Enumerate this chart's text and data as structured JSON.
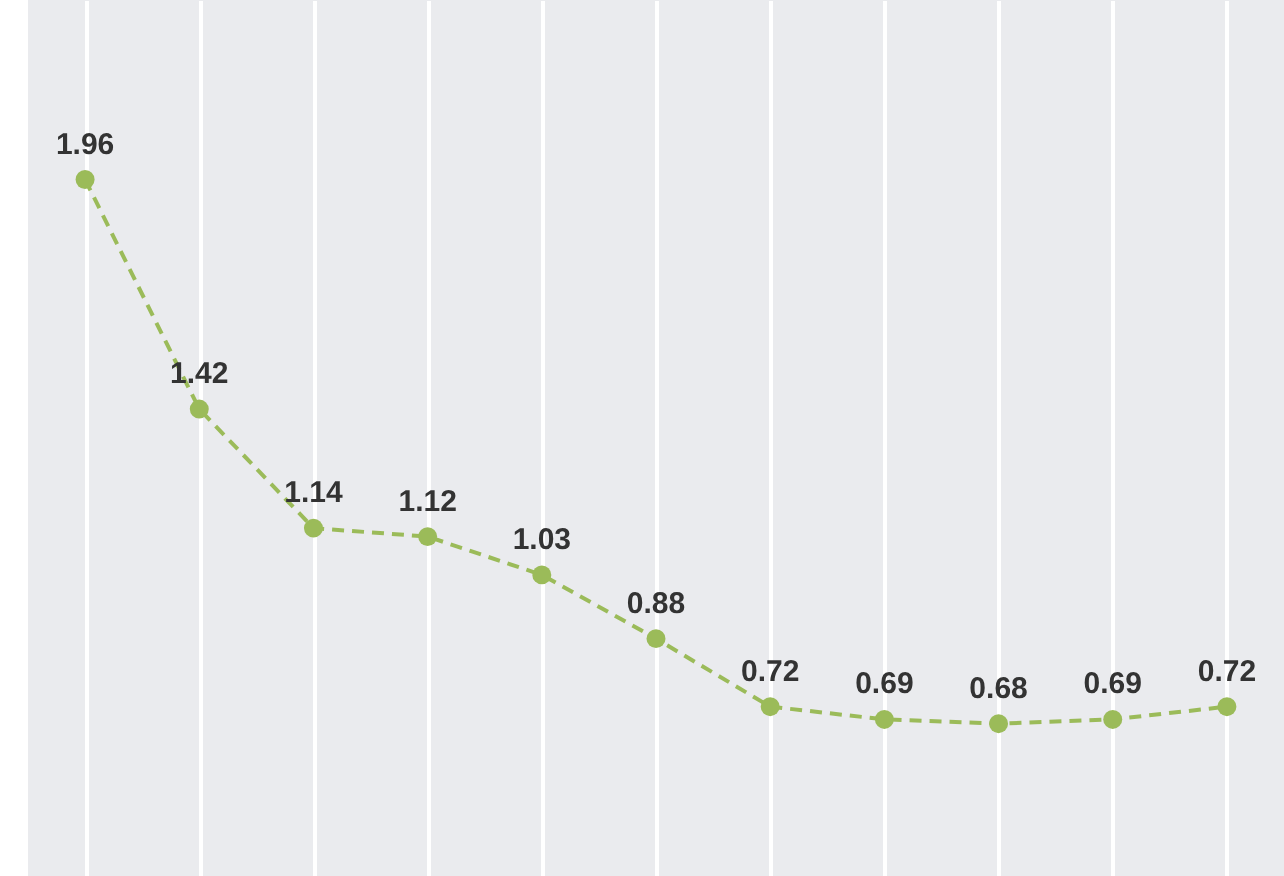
{
  "chart_data": {
    "type": "line",
    "categories": [
      null,
      null,
      null,
      null,
      null,
      null,
      null,
      null,
      null,
      null,
      null
    ],
    "series": [
      {
        "color": "#9bbb59",
        "values": [
          1.96,
          1.42,
          1.14,
          1.12,
          1.03,
          0.88,
          0.72,
          0.69,
          0.68,
          0.69,
          0.72
        ]
      }
    ],
    "data_labels": true,
    "marker": "circle",
    "line_style": "dashed",
    "grid": "x",
    "tick_labels": false
  }
}
